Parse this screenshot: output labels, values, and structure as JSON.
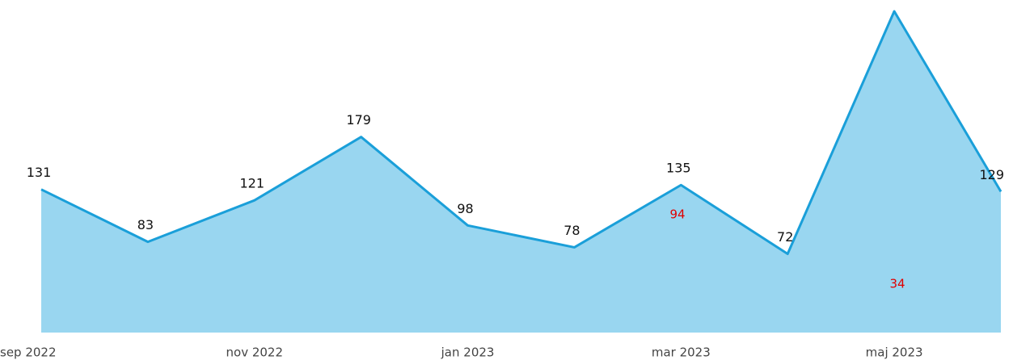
{
  "chart_data": {
    "type": "area",
    "categories": [
      "sep 2022",
      null,
      "nov 2022",
      null,
      "jan 2023",
      null,
      "mar 2023",
      null,
      "maj 2023",
      null
    ],
    "series": [
      {
        "values": [
          131,
          83,
          121,
          179,
          98,
          78,
          135,
          72,
          294,
          129
        ],
        "color": "#1a9fd9",
        "fill": "#99d6f0"
      }
    ],
    "annotations": [
      "94",
      "34"
    ],
    "annotation_color": "#e00000"
  }
}
